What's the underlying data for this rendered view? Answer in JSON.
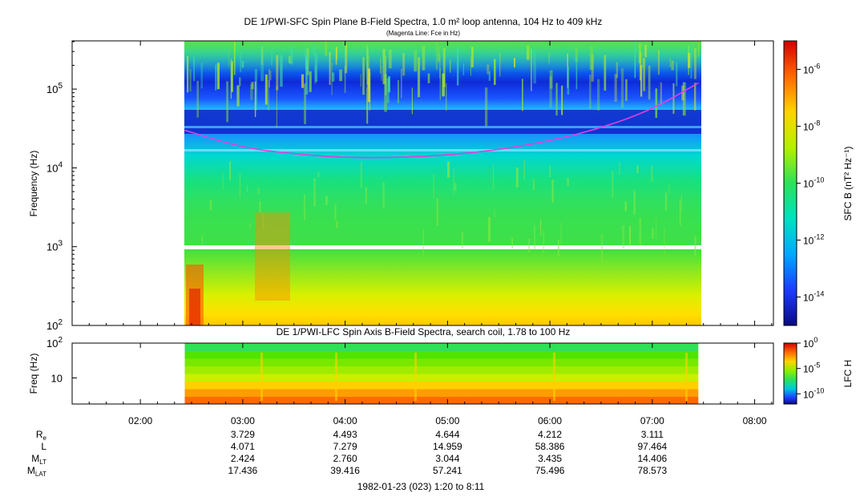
{
  "top_panel": {
    "title": "DE 1/PWI-SFC  Spin Plane B-Field Spectra, 1.0 m² loop antenna, 104 Hz to 409 kHz",
    "subtitle": "(Magenta Line: Fce in Hz)",
    "ylabel": "Frequency (Hz)",
    "colorbar_label": "SFC B (nT² Hz⁻¹)",
    "y_ticks": [
      {
        "base": "10",
        "exp": "2",
        "value": 100
      },
      {
        "base": "10",
        "exp": "3",
        "value": 1000
      },
      {
        "base": "10",
        "exp": "4",
        "value": 10000
      },
      {
        "base": "10",
        "exp": "5",
        "value": 100000
      }
    ],
    "colorbar_ticks": [
      {
        "base": "10",
        "exp": "-6",
        "value": 1e-06
      },
      {
        "base": "10",
        "exp": "-8",
        "value": 1e-08
      },
      {
        "base": "10",
        "exp": "-10",
        "value": 1e-10
      },
      {
        "base": "10",
        "exp": "-12",
        "value": 1e-12
      },
      {
        "base": "10",
        "exp": "-14",
        "value": 1e-14
      }
    ],
    "colorbar_colors": [
      "#d10000",
      "#ff6a00",
      "#ffd400",
      "#b4f000",
      "#2ee05a",
      "#00e0c0",
      "#00a8ff",
      "#1c3cff",
      "#0a0a80"
    ],
    "fce_line_color": "#e040e0"
  },
  "bottom_panel": {
    "title": "DE 1/PWI-LFC  Spin Axis B-Field Spectra, search coil, 1.78 to 100 Hz",
    "ylabel": "Freq (Hz)",
    "colorbar_label": "LFC H",
    "y_ticks": [
      {
        "base": "10",
        "exp": "",
        "value": 10
      },
      {
        "base": "10",
        "exp": "2",
        "value": 100
      }
    ],
    "colorbar_ticks": [
      {
        "base": "10",
        "exp": "0",
        "value": 1
      },
      {
        "base": "10",
        "exp": "-5",
        "value": 1e-05
      },
      {
        "base": "10",
        "exp": "-10",
        "value": 1e-10
      }
    ],
    "band_colors": [
      "#ff6a00",
      "#ff9c00",
      "#ffd000",
      "#c8f000",
      "#a0ec00",
      "#78e800",
      "#50e400",
      "#2ee05a"
    ]
  },
  "x_axis": {
    "tick_labels": [
      "02:00",
      "03:00",
      "04:00",
      "05:00",
      "06:00",
      "07:00",
      "08:00"
    ],
    "caption": "1982-01-23 (023) 1:20 to 8:11"
  },
  "ephemeris": [
    {
      "label": "R",
      "sub": "e",
      "values": [
        "3.729",
        "4.493",
        "4.644",
        "4.212",
        "3.111"
      ]
    },
    {
      "label": "L",
      "sub": "",
      "values": [
        "4.071",
        "7.279",
        "14.959",
        "58.386",
        "97.464"
      ]
    },
    {
      "label": "M",
      "sub": "LT",
      "values": [
        "2.424",
        "2.760",
        "3.044",
        "3.435",
        "14.406"
      ]
    },
    {
      "label": "M",
      "sub": "LAT",
      "values": [
        "17.436",
        "39.416",
        "57.241",
        "75.496",
        "78.573"
      ]
    }
  ],
  "chart_data": {
    "type": "heatmap",
    "x_range": [
      "01:20",
      "08:11"
    ],
    "data_coverage": [
      "02:26",
      "07:27"
    ],
    "top": {
      "ylim": [
        100,
        409000
      ],
      "yscale": "log",
      "fce_line": {
        "x": [
          "02:26",
          "03:00",
          "03:30",
          "04:00",
          "04:30",
          "05:00",
          "05:30",
          "06:00",
          "06:30",
          "07:00",
          "07:27"
        ],
        "y": [
          30000,
          18000,
          15000,
          13500,
          13500,
          14500,
          17000,
          22000,
          32000,
          55000,
          120000
        ]
      },
      "color_range": [
        1e-15,
        1e-05
      ]
    },
    "bottom": {
      "ylim": [
        1.78,
        100
      ],
      "yscale": "log",
      "color_range": [
        1e-12,
        1
      ]
    }
  }
}
